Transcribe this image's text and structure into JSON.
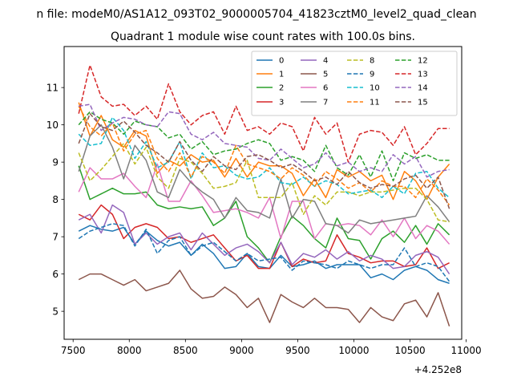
{
  "chart_data": {
    "type": "line",
    "suptitle": "n file: modeM0/AS1A12_093T02_9000005704_41823cztM0_level2_quad_clean",
    "title": "Quadrant 1 module wise count rates with 100.0s bins.",
    "offset_label": "+4.252e8",
    "xlabel": "",
    "ylabel": "",
    "xlim": [
      7420,
      10960
    ],
    "ylim": [
      4.25,
      12.1
    ],
    "xticks": [
      7500,
      8000,
      8500,
      9000,
      9500,
      10000,
      10500,
      11000
    ],
    "xtick_labels": [
      "7500",
      "8000",
      "8500",
      "9000",
      "9500",
      "10000",
      "10500",
      "11000"
    ],
    "yticks": [
      5,
      6,
      7,
      8,
      9,
      10,
      11
    ],
    "ytick_labels": [
      "5",
      "6",
      "7",
      "8",
      "9",
      "10",
      "11"
    ],
    "legend": {
      "placement": "top-right",
      "ncol": 4
    },
    "x": [
      7550,
      7650,
      7750,
      7850,
      7950,
      8050,
      8150,
      8250,
      8350,
      8450,
      8550,
      8650,
      8750,
      8850,
      8950,
      9050,
      9150,
      9250,
      9350,
      9450,
      9550,
      9650,
      9750,
      9850,
      9950,
      10050,
      10150,
      10250,
      10350,
      10450,
      10550,
      10650,
      10750,
      10850
    ],
    "series": [
      {
        "name": "0",
        "color": "#1f77b4",
        "dash": "solid",
        "values": [
          7.15,
          7.3,
          7.2,
          7.15,
          7.25,
          6.8,
          7.15,
          6.9,
          6.75,
          6.85,
          6.5,
          6.8,
          6.55,
          6.15,
          6.2,
          6.55,
          6.2,
          6.15,
          6.5,
          6.2,
          6.25,
          6.35,
          6.15,
          6.25,
          6.25,
          6.25,
          5.9,
          6.0,
          5.85,
          6.1,
          6.2,
          6.1,
          5.85,
          5.75
        ]
      },
      {
        "name": "1",
        "color": "#ff7f0e",
        "dash": "solid",
        "values": [
          10.6,
          9.7,
          10.25,
          9.6,
          9.4,
          9.85,
          9.7,
          8.7,
          9.05,
          8.9,
          9.2,
          9.0,
          9.05,
          8.6,
          9.1,
          8.6,
          9.0,
          8.9,
          8.9,
          8.7,
          8.1,
          8.55,
          8.05,
          8.8,
          8.6,
          8.75,
          8.5,
          8.65,
          8.0,
          8.75,
          8.5,
          8.0,
          8.6,
          8.95
        ]
      },
      {
        "name": "2",
        "color": "#2ca02c",
        "dash": "solid",
        "values": [
          8.9,
          8.0,
          8.15,
          8.3,
          8.15,
          8.15,
          8.2,
          7.85,
          7.75,
          7.8,
          7.75,
          7.8,
          7.3,
          7.5,
          7.95,
          7.0,
          6.7,
          6.3,
          7.0,
          7.55,
          7.3,
          6.95,
          6.7,
          7.5,
          6.95,
          6.9,
          6.4,
          6.95,
          7.15,
          6.85,
          7.3,
          6.8,
          7.35,
          7.05
        ]
      },
      {
        "name": "3",
        "color": "#d62728",
        "dash": "solid",
        "values": [
          7.6,
          7.45,
          7.85,
          7.6,
          6.95,
          7.25,
          7.35,
          7.25,
          6.95,
          7.0,
          6.85,
          6.95,
          7.05,
          6.7,
          6.35,
          6.5,
          6.15,
          6.15,
          6.85,
          6.2,
          6.4,
          6.3,
          6.35,
          7.05,
          6.55,
          6.45,
          6.3,
          6.35,
          6.35,
          6.2,
          6.25,
          6.7,
          6.15,
          6.3
        ]
      },
      {
        "name": "4",
        "color": "#9467bd",
        "dash": "solid",
        "values": [
          7.45,
          7.6,
          7.1,
          7.85,
          7.65,
          6.8,
          7.1,
          6.8,
          7.0,
          7.1,
          6.65,
          7.1,
          6.8,
          6.5,
          6.7,
          6.8,
          6.6,
          6.3,
          6.85,
          6.25,
          6.55,
          6.45,
          6.65,
          6.4,
          6.6,
          6.35,
          6.5,
          6.4,
          6.15,
          6.2,
          6.5,
          6.6,
          6.45,
          6.0
        ]
      },
      {
        "name": "5",
        "color": "#8c564b",
        "dash": "solid",
        "values": [
          5.85,
          6.0,
          6.0,
          5.85,
          5.7,
          5.85,
          5.55,
          5.65,
          5.75,
          6.1,
          5.6,
          5.35,
          5.4,
          5.65,
          5.45,
          5.1,
          5.35,
          4.7,
          5.45,
          5.25,
          5.1,
          5.35,
          5.1,
          5.1,
          5.05,
          4.7,
          5.1,
          4.85,
          4.75,
          5.2,
          5.3,
          4.85,
          5.5,
          4.6
        ]
      },
      {
        "name": "6",
        "color": "#e377c2",
        "dash": "solid",
        "values": [
          8.2,
          8.85,
          8.55,
          8.55,
          8.7,
          8.35,
          8.05,
          8.95,
          7.95,
          7.95,
          8.5,
          8.1,
          7.65,
          7.7,
          7.75,
          7.65,
          7.5,
          8.05,
          6.95,
          7.95,
          7.95,
          6.95,
          7.35,
          7.3,
          7.35,
          7.3,
          7.05,
          7.45,
          7.0,
          7.5,
          6.95,
          7.3,
          7.15,
          6.8
        ]
      },
      {
        "name": "7",
        "color": "#7f7f7f",
        "dash": "solid",
        "values": [
          8.75,
          9.7,
          10.0,
          9.4,
          8.55,
          9.45,
          9.05,
          8.2,
          8.05,
          8.8,
          8.45,
          8.2,
          8.0,
          7.5,
          8.05,
          7.7,
          7.65,
          7.5,
          8.55,
          7.5,
          8.0,
          7.95,
          7.35,
          7.3,
          7.1,
          7.45,
          7.35,
          7.4,
          7.45,
          7.5,
          7.55,
          8.1,
          7.8,
          7.4
        ]
      },
      {
        "name": "8",
        "color": "#bcbd22",
        "dash": "dashed",
        "values": [
          9.25,
          8.5,
          8.8,
          9.15,
          9.5,
          8.95,
          9.4,
          8.6,
          8.3,
          9.1,
          9.0,
          8.7,
          8.3,
          8.35,
          8.45,
          9.05,
          8.05,
          8.05,
          8.05,
          8.45,
          7.6,
          8.1,
          7.85,
          8.2,
          8.2,
          8.1,
          8.2,
          8.2,
          8.25,
          8.3,
          8.3,
          8.0,
          7.45,
          7.4
        ]
      },
      {
        "name": "9",
        "color": "#1f77b4",
        "dash": "dashed",
        "values": [
          6.95,
          7.15,
          7.25,
          7.35,
          7.3,
          6.75,
          7.2,
          6.55,
          6.9,
          7.0,
          6.5,
          6.75,
          6.85,
          6.6,
          6.35,
          6.55,
          6.35,
          6.4,
          6.45,
          6.1,
          6.35,
          6.3,
          6.25,
          6.15,
          6.35,
          6.25,
          6.15,
          6.25,
          6.25,
          6.7,
          6.2,
          6.3,
          6.2,
          5.8
        ]
      },
      {
        "name": "10",
        "color": "#17becf",
        "dash": "dashed",
        "values": [
          9.75,
          9.45,
          9.5,
          10.2,
          9.85,
          9.1,
          9.55,
          8.85,
          9.0,
          9.55,
          8.55,
          9.25,
          8.85,
          8.9,
          8.65,
          8.55,
          8.6,
          8.85,
          8.45,
          8.4,
          8.6,
          8.35,
          8.5,
          8.4,
          8.15,
          8.2,
          8.25,
          8.05,
          8.35,
          8.15,
          8.7,
          8.75,
          8.3,
          8.05
        ]
      },
      {
        "name": "11",
        "color": "#ff7f0e",
        "dash": "dashed",
        "values": [
          10.5,
          9.95,
          9.7,
          10.05,
          9.3,
          9.75,
          9.85,
          9.1,
          8.75,
          9.25,
          8.6,
          9.15,
          9.0,
          8.7,
          9.45,
          8.95,
          8.85,
          8.75,
          8.55,
          8.85,
          8.65,
          8.35,
          8.75,
          8.55,
          8.3,
          8.45,
          8.2,
          8.5,
          8.35,
          8.35,
          8.05,
          8.55,
          8.25,
          7.85
        ]
      },
      {
        "name": "12",
        "color": "#2ca02c",
        "dash": "dashed",
        "values": [
          10.0,
          10.35,
          10.15,
          10.05,
          9.75,
          10.1,
          10.0,
          9.95,
          9.65,
          9.75,
          9.35,
          9.55,
          9.2,
          9.3,
          9.35,
          9.5,
          9.6,
          9.5,
          9.05,
          9.15,
          9.05,
          8.75,
          9.45,
          8.85,
          8.65,
          9.2,
          8.6,
          9.3,
          8.5,
          9.25,
          9.1,
          9.2,
          9.05,
          9.05
        ]
      },
      {
        "name": "13",
        "color": "#d62728",
        "dash": "dashed",
        "values": [
          10.3,
          11.6,
          10.75,
          10.5,
          10.55,
          10.25,
          10.5,
          10.15,
          11.1,
          10.35,
          10.0,
          10.25,
          10.35,
          9.75,
          10.5,
          9.85,
          9.95,
          9.75,
          10.05,
          9.95,
          9.3,
          10.2,
          9.75,
          10.05,
          9.0,
          9.75,
          9.85,
          9.8,
          9.45,
          9.95,
          9.2,
          9.5,
          9.9,
          9.9
        ]
      },
      {
        "name": "14",
        "color": "#9467bd",
        "dash": "dashed",
        "values": [
          10.5,
          10.55,
          9.85,
          10.05,
          10.2,
          10.15,
          10.0,
          9.95,
          10.35,
          10.3,
          9.75,
          9.6,
          9.8,
          9.5,
          9.45,
          9.4,
          9.1,
          9.05,
          9.35,
          9.1,
          8.85,
          8.95,
          9.25,
          8.9,
          9.0,
          8.75,
          8.85,
          8.75,
          9.2,
          8.95,
          9.15,
          8.6,
          8.75,
          8.8
        ]
      },
      {
        "name": "15",
        "color": "#8c564b",
        "dash": "dashed",
        "values": [
          9.5,
          10.3,
          9.95,
          9.85,
          10.1,
          9.8,
          9.45,
          9.25,
          9.0,
          9.55,
          9.05,
          8.75,
          9.15,
          8.9,
          8.8,
          9.15,
          9.2,
          9.05,
          8.85,
          8.95,
          8.75,
          8.5,
          8.6,
          8.4,
          8.75,
          8.45,
          8.3,
          8.4,
          8.35,
          8.55,
          8.65,
          8.3,
          8.6,
          7.75
        ]
      }
    ]
  }
}
